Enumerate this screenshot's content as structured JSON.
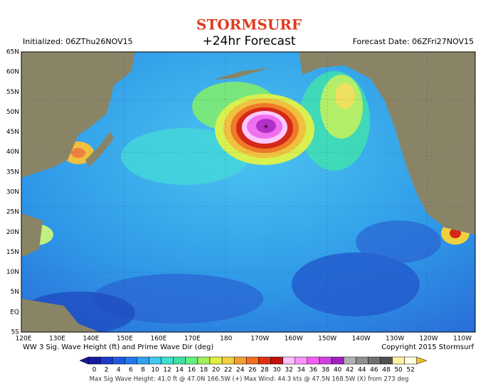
{
  "header": {
    "brand": "STORMSURF",
    "title": "+24hr Forecast",
    "initialized": "Initialized: 06ZThu26NOV15",
    "forecast_date": "Forecast Date: 06ZFri27NOV15"
  },
  "map": {
    "lat_labels": [
      "65N",
      "60N",
      "55N",
      "50N",
      "45N",
      "40N",
      "35N",
      "30N",
      "25N",
      "20N",
      "15N",
      "10N",
      "5N",
      "EQ",
      "5S"
    ],
    "lon_labels": [
      "120E",
      "130E",
      "140E",
      "150E",
      "160E",
      "170E",
      "180",
      "170W",
      "160W",
      "150W",
      "140W",
      "130W",
      "120W",
      "110W"
    ]
  },
  "footer": {
    "caption": "WW 3 Sig. Wave Height (ft) and Prime Wave Dir (deg)",
    "copyright": "Copyright 2015 Stormsurf",
    "scale_labels": [
      "0",
      "2",
      "4",
      "6",
      "8",
      "10",
      "12",
      "14",
      "16",
      "18",
      "20",
      "22",
      "24",
      "26",
      "28",
      "30",
      "32",
      "34",
      "36",
      "38",
      "40",
      "42",
      "44",
      "46",
      "48",
      "50",
      "52"
    ],
    "stats": "Max Sig Wave Height: 41.0 ft @ 47.0N 166.5W (+)   Max Wind: 44.3 kts @ 47.5N 168.5W (X) from 273 deg"
  }
}
